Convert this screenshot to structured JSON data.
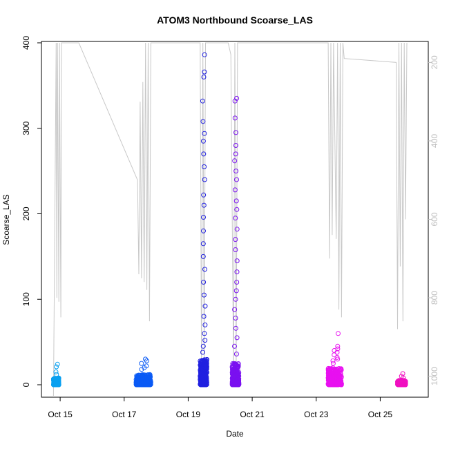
{
  "chart_data": {
    "type": "scatter",
    "title": "ATOM3 Northbound Scoarse_LAS",
    "xlabel": "Date",
    "ylabel": "Scoarse_LAS",
    "ylim": [
      0,
      400
    ],
    "xlim": [
      "Oct 14 11:00",
      "Oct 26 11:00"
    ],
    "x_ticks": [
      "Oct 15",
      "Oct 17",
      "Oct 19",
      "Oct 21",
      "Oct 23",
      "Oct 25"
    ],
    "y_ticks": [
      0,
      100,
      200,
      300,
      400
    ],
    "y2_ticks": [
      200,
      400,
      600,
      800,
      1000
    ],
    "y2_lim": [
      1050,
      150
    ],
    "grid": false,
    "legend": "none",
    "clusters": [
      {
        "start": "Oct 14 19:00",
        "end": "Oct 14 23:00",
        "color": "#0aa0f0",
        "typical_max": 8,
        "outliers": [
          24,
          21,
          15,
          12
        ]
      },
      {
        "start": "Oct 17 09:00",
        "end": "Oct 17 20:00",
        "color": "#0a5af5",
        "typical_max": 12,
        "outliers": [
          30,
          28,
          25,
          22,
          20,
          18
        ]
      },
      {
        "start": "Oct 19 09:00",
        "end": "Oct 19 14:00",
        "color": "#2020e0",
        "typical_max": 30,
        "outliers": [
          386,
          366,
          360,
          332,
          308,
          294,
          285,
          270,
          255,
          240,
          222,
          210,
          196,
          180,
          165,
          150,
          135,
          120,
          105,
          92,
          80,
          70,
          60,
          52,
          45,
          38
        ]
      },
      {
        "start": "Oct 20 09:00",
        "end": "Oct 20 14:00",
        "color": "#7a10f0",
        "typical_max": 25,
        "outliers": [
          335,
          332,
          312,
          295,
          280,
          270,
          262,
          250,
          240,
          228,
          215,
          205,
          195,
          182,
          170,
          158,
          145,
          132,
          120,
          110,
          100,
          88,
          78,
          66,
          55,
          45,
          36
        ]
      },
      {
        "start": "Oct 23 09:00",
        "end": "Oct 23 19:00",
        "color": "#e810f0",
        "typical_max": 20,
        "outliers": [
          60,
          45,
          42,
          40,
          38,
          35,
          32,
          30,
          28,
          25
        ]
      },
      {
        "start": "Oct 25 13:00",
        "end": "Oct 25 19:00",
        "color": "#f010c0",
        "typical_max": 5,
        "outliers": [
          13,
          10,
          8
        ]
      }
    ],
    "secondary_series": {
      "name": "",
      "color": "#c8c8c8",
      "points": [
        [
          "Oct 14 19:00",
          1050
        ],
        [
          "Oct 14 20:00",
          600
        ],
        [
          "Oct 14 21:00",
          150
        ],
        [
          "Oct 14 21:30",
          800
        ],
        [
          "Oct 14 22:00",
          150
        ],
        [
          "Oct 14 23:00",
          810
        ],
        [
          "Oct 14 23:30",
          150
        ],
        [
          "Oct 15 00:30",
          850
        ],
        [
          "Oct 15 01:00",
          150
        ],
        [
          "Oct 15 14:00",
          150
        ],
        [
          "Oct 17 10:00",
          500
        ],
        [
          "Oct 17 11:00",
          740
        ],
        [
          "Oct 17 12:00",
          300
        ],
        [
          "Oct 17 13:00",
          750
        ],
        [
          "Oct 17 14:00",
          250
        ],
        [
          "Oct 17 15:00",
          760
        ],
        [
          "Oct 17 16:00",
          150
        ],
        [
          "Oct 17 17:00",
          780
        ],
        [
          "Oct 17 18:00",
          150
        ],
        [
          "Oct 17 19:00",
          860
        ],
        [
          "Oct 17 20:00",
          150
        ],
        [
          "Oct 19 09:00",
          150
        ],
        [
          "Oct 19 10:00",
          1000
        ],
        [
          "Oct 19 11:00",
          150
        ],
        [
          "Oct 19 12:00",
          980
        ],
        [
          "Oct 19 13:00",
          150
        ],
        [
          "Oct 19 14:00",
          150
        ],
        [
          "Oct 20 06:00",
          150
        ],
        [
          "Oct 20 08:00",
          180
        ],
        [
          "Oct 20 10:00",
          1000
        ],
        [
          "Oct 20 11:00",
          150
        ],
        [
          "Oct 20 12:00",
          990
        ],
        [
          "Oct 20 13:00",
          150
        ],
        [
          "Oct 20 14:00",
          150
        ],
        [
          "Oct 23 09:00",
          150
        ],
        [
          "Oct 23 10:00",
          700
        ],
        [
          "Oct 23 11:00",
          150
        ],
        [
          "Oct 23 12:00",
          640
        ],
        [
          "Oct 23 13:00",
          150
        ],
        [
          "Oct 23 15:00",
          650
        ],
        [
          "Oct 23 16:00",
          150
        ],
        [
          "Oct 23 17:00",
          830
        ],
        [
          "Oct 23 18:00",
          150
        ],
        [
          "Oct 23 19:00",
          850
        ],
        [
          "Oct 23 20:00",
          150
        ],
        [
          "Oct 23 21:00",
          190
        ],
        [
          "Oct 25 12:00",
          200
        ],
        [
          "Oct 25 13:00",
          880
        ],
        [
          "Oct 25 14:00",
          150
        ],
        [
          "Oct 25 15:00",
          720
        ],
        [
          "Oct 25 16:00",
          150
        ],
        [
          "Oct 25 17:00",
          860
        ],
        [
          "Oct 25 18:00",
          150
        ],
        [
          "Oct 25 19:00",
          600
        ],
        [
          "Oct 25 20:00",
          150
        ]
      ]
    }
  }
}
